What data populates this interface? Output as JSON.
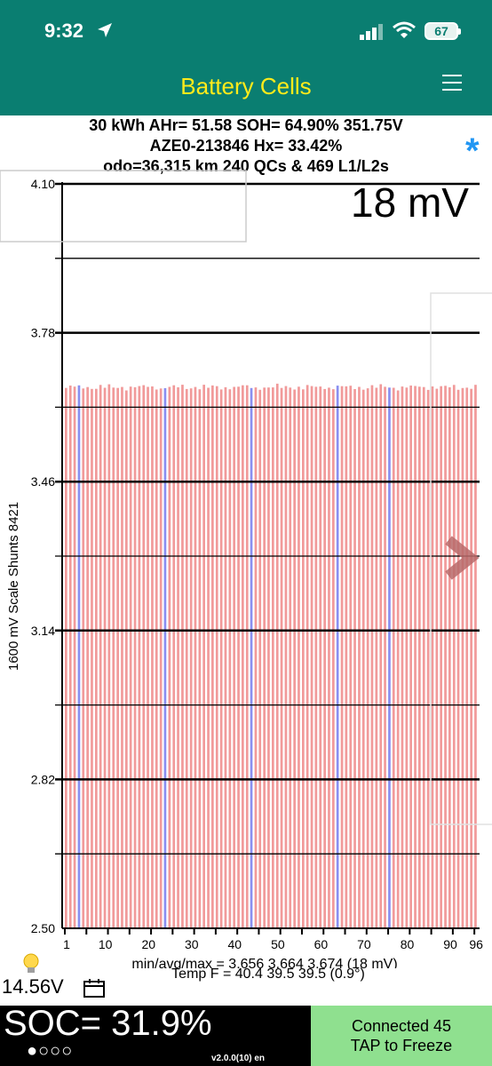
{
  "status": {
    "time": "9:32",
    "battery": "67"
  },
  "header": {
    "title": "Battery Cells"
  },
  "info": {
    "line1": "30 kWh  AHr= 51.58  SOH= 64.90%   351.75V",
    "line2": "AZE0-213846    Hx= 33.42%",
    "line3": "odo=36,315 km 240 QCs & 469 L1/L2s"
  },
  "chart_data": {
    "type": "bar",
    "title": "18 mV",
    "ylabel": "1600 mV Scale   Shunts 8421",
    "ylim": [
      2.5,
      4.1
    ],
    "yticks": [
      "4.10",
      "3.78",
      "3.46",
      "3.14",
      "2.82",
      "2.50"
    ],
    "xticks": [
      "1",
      "10",
      "20",
      "30",
      "40",
      "50",
      "60",
      "70",
      "80",
      "90",
      "96"
    ],
    "cell_count": 96,
    "min": 3.656,
    "avg": 3.664,
    "max": 3.674,
    "highlight_cells": [
      4,
      24,
      44,
      64,
      76
    ],
    "colors": {
      "bar": "#f19a9a",
      "highlight": "#8a8ff0"
    }
  },
  "stats": {
    "minavgmax": "min/avg/max = 3.656 3.664 3.674  (18 mV)",
    "temp": "Temp F = 40.4  39.5  39.5  (0.9°)"
  },
  "footer": {
    "voltage": "14.56V",
    "soc": "SOC= 31.9%",
    "dots": "●○○○",
    "version": "v2.0.0(10) en",
    "connect_line1": "Connected 45",
    "connect_line2": "TAP to Freeze"
  }
}
